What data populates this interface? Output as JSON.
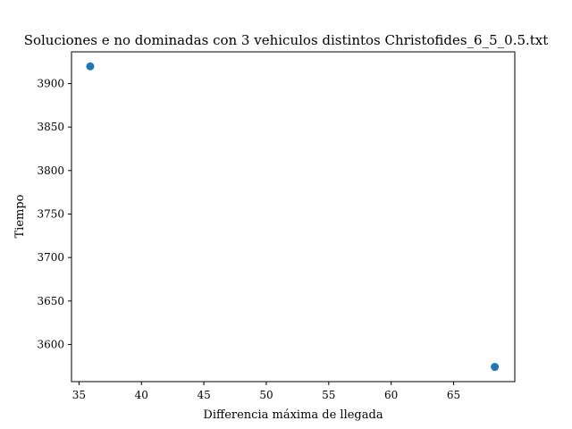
{
  "chart_data": {
    "type": "scatter",
    "title": "Soluciones e no dominadas con 3 vehiculos distintos Christofides_6_5_0.5.txt",
    "xlabel": "Differencia máxima de llegada",
    "ylabel": "Tiempo",
    "xlim": [
      34.4,
      69.9
    ],
    "ylim": [
      3557.3,
      3936.5
    ],
    "xticks": [
      35,
      40,
      45,
      50,
      55,
      60,
      65
    ],
    "yticks": [
      3600,
      3650,
      3700,
      3750,
      3800,
      3850,
      3900
    ],
    "grid": false,
    "series": [
      {
        "color": "#1f77b4",
        "points": [
          {
            "x": 35.9,
            "y": 3919.8
          },
          {
            "x": 68.3,
            "y": 3574.2
          }
        ]
      }
    ]
  }
}
